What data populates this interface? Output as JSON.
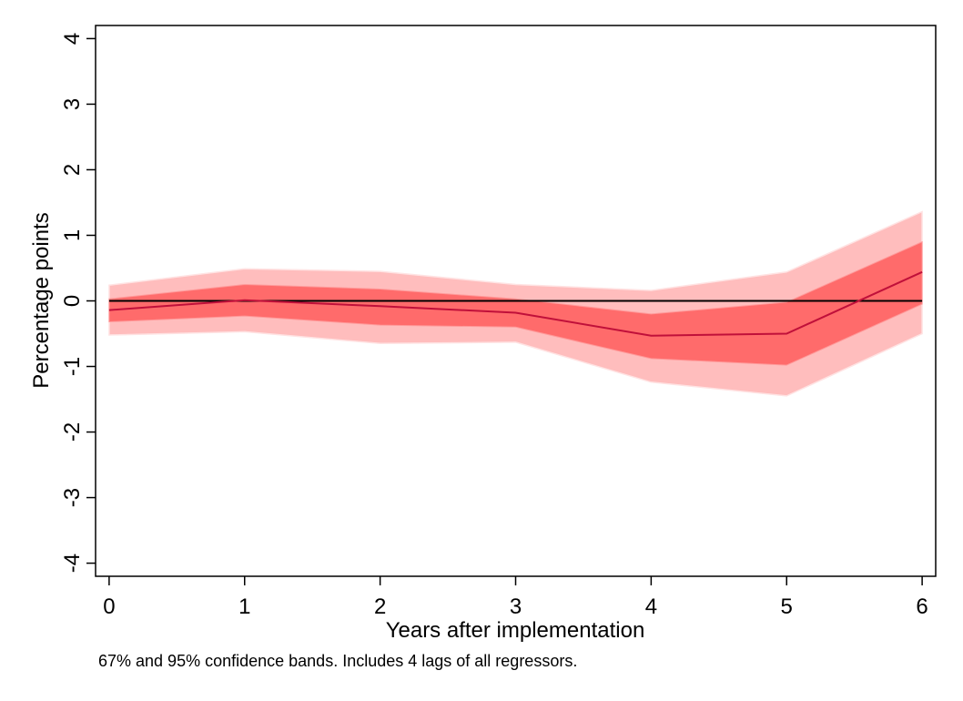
{
  "chart_data": {
    "type": "area",
    "xlabel": "Years after implementation",
    "ylabel": "Percentage points",
    "note": "67% and 95% confidence bands. Includes 4 lags of all regressors.",
    "x": [
      0,
      1,
      2,
      3,
      4,
      5,
      6
    ],
    "xlim": [
      -0.1,
      6.1
    ],
    "ylim": [
      -4.2,
      4.2
    ],
    "xticks": [
      "0",
      "1",
      "2",
      "3",
      "4",
      "5",
      "6"
    ],
    "yticks": [
      "-4",
      "-3",
      "-2",
      "-1",
      "0",
      "1",
      "2",
      "3",
      "4"
    ],
    "grid": false,
    "reference_line": 0,
    "series": [
      {
        "values": [
          -0.14,
          0.01,
          -0.08,
          -0.18,
          -0.53,
          -0.5,
          0.44
        ],
        "band_67": {
          "lower": [
            -0.32,
            -0.23,
            -0.37,
            -0.4,
            -0.88,
            -0.98,
            -0.05
          ],
          "upper": [
            0.03,
            0.25,
            0.18,
            0.03,
            -0.2,
            -0.02,
            0.9
          ]
        },
        "band_95": {
          "lower": [
            -0.52,
            -0.47,
            -0.65,
            -0.63,
            -1.24,
            -1.45,
            -0.5
          ],
          "upper": [
            0.24,
            0.49,
            0.45,
            0.25,
            0.16,
            0.44,
            1.36
          ]
        }
      }
    ],
    "colors": {
      "band_95": "#ffbdbd",
      "band_67": "#ff6b6b",
      "estimate_line": "#c0103a",
      "zero_line": "#000000"
    }
  }
}
